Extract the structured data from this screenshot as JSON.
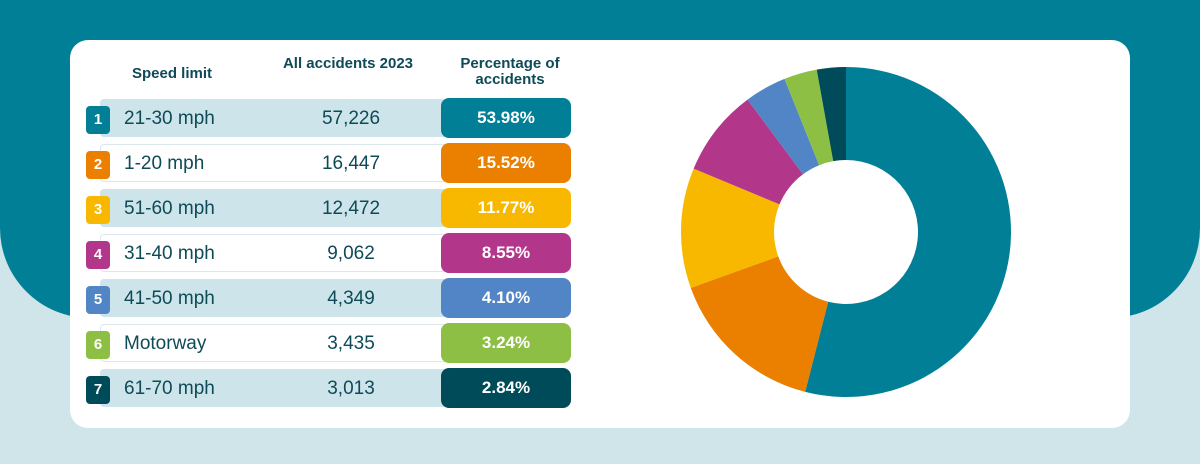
{
  "headers": {
    "speed_limit": "Speed limit",
    "all_accidents": "All accidents 2023",
    "percentage": "Percentage of accidents"
  },
  "chart_data": {
    "type": "pie",
    "title": "",
    "categories": [
      "21-30 mph",
      "1-20 mph",
      "51-60 mph",
      "31-40 mph",
      "41-50 mph",
      "Motorway",
      "61-70 mph"
    ],
    "rows": [
      {
        "rank": "1",
        "label": "21-30 mph",
        "count": "57,226",
        "percent_label": "53.98%",
        "value": 53.98,
        "color": "#007f96"
      },
      {
        "rank": "2",
        "label": "1-20 mph",
        "count": "16,447",
        "percent_label": "15.52%",
        "value": 15.52,
        "color": "#ea7f00"
      },
      {
        "rank": "3",
        "label": "51-60 mph",
        "count": "12,472",
        "percent_label": "11.77%",
        "value": 11.77,
        "color": "#f8b800"
      },
      {
        "rank": "4",
        "label": "31-40 mph",
        "count": "9,062",
        "percent_label": "8.55%",
        "value": 8.55,
        "color": "#b2378b"
      },
      {
        "rank": "5",
        "label": "41-50 mph",
        "count": "4,349",
        "percent_label": "4.10%",
        "value": 4.1,
        "color": "#5185c5"
      },
      {
        "rank": "6",
        "label": "Motorway",
        "count": "3,435",
        "percent_label": "3.24%",
        "value": 3.24,
        "color": "#8dbf45"
      },
      {
        "rank": "7",
        "label": "61-70 mph",
        "count": "3,013",
        "percent_label": "2.84%",
        "value": 2.84,
        "color": "#004b5a"
      }
    ],
    "donut": true
  }
}
